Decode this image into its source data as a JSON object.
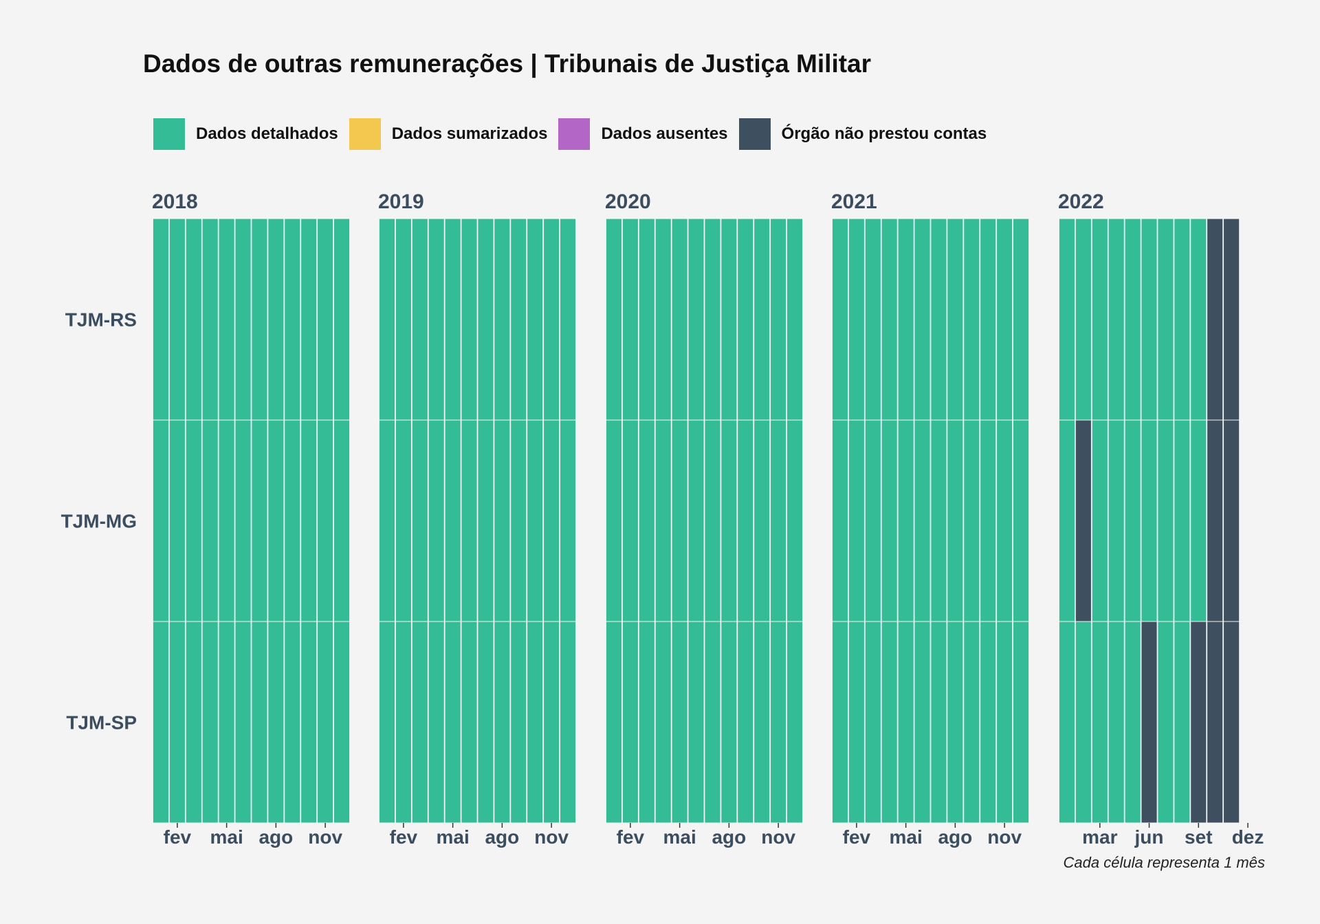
{
  "title": "Dados de outras remunerações | Tribunais de Justiça Militar",
  "colors": {
    "background": "#f4f4f4",
    "axis_text": "#3b4d5e",
    "detalhados": "#33bc96",
    "sumarizados": "#f4c84e",
    "ausentes": "#b466c6",
    "nao_prestou": "#3e5060"
  },
  "legend": [
    {
      "label": "Dados detalhados",
      "color": "#33bc96",
      "key": "D"
    },
    {
      "label": "Dados sumarizados",
      "color": "#f4c84e",
      "key": "S"
    },
    {
      "label": "Dados ausentes",
      "color": "#b466c6",
      "key": "A"
    },
    {
      "label": "Órgão não prestou contas",
      "color": "#3e5060",
      "key": "N"
    }
  ],
  "caption": "Cada célula representa 1 mês",
  "chart_data": {
    "type": "heatmap",
    "rows": [
      "TJM-RS",
      "TJM-MG",
      "TJM-SP"
    ],
    "tick_labels_default": [
      "fev",
      "mai",
      "ago",
      "nov"
    ],
    "tick_months_default": [
      2,
      5,
      8,
      11
    ],
    "tick_labels_2022": [
      "mar",
      "jun",
      "set",
      "dez"
    ],
    "tick_months_2022": [
      3,
      6,
      9,
      12
    ],
    "panels": [
      {
        "year": "2018",
        "months": 12,
        "status": {
          "TJM-RS": [
            "D",
            "D",
            "D",
            "D",
            "D",
            "D",
            "D",
            "D",
            "D",
            "D",
            "D",
            "D"
          ],
          "TJM-MG": [
            "D",
            "D",
            "D",
            "D",
            "D",
            "D",
            "D",
            "D",
            "D",
            "D",
            "D",
            "D"
          ],
          "TJM-SP": [
            "D",
            "D",
            "D",
            "D",
            "D",
            "D",
            "D",
            "D",
            "D",
            "D",
            "D",
            "D"
          ]
        }
      },
      {
        "year": "2019",
        "months": 12,
        "status": {
          "TJM-RS": [
            "D",
            "D",
            "D",
            "D",
            "D",
            "D",
            "D",
            "D",
            "D",
            "D",
            "D",
            "D"
          ],
          "TJM-MG": [
            "D",
            "D",
            "D",
            "D",
            "D",
            "D",
            "D",
            "D",
            "D",
            "D",
            "D",
            "D"
          ],
          "TJM-SP": [
            "D",
            "D",
            "D",
            "D",
            "D",
            "D",
            "D",
            "D",
            "D",
            "D",
            "D",
            "D"
          ]
        }
      },
      {
        "year": "2020",
        "months": 12,
        "status": {
          "TJM-RS": [
            "D",
            "D",
            "D",
            "D",
            "D",
            "D",
            "D",
            "D",
            "D",
            "D",
            "D",
            "D"
          ],
          "TJM-MG": [
            "D",
            "D",
            "D",
            "D",
            "D",
            "D",
            "D",
            "D",
            "D",
            "D",
            "D",
            "D"
          ],
          "TJM-SP": [
            "D",
            "D",
            "D",
            "D",
            "D",
            "D",
            "D",
            "D",
            "D",
            "D",
            "D",
            "D"
          ]
        }
      },
      {
        "year": "2021",
        "months": 12,
        "status": {
          "TJM-RS": [
            "D",
            "D",
            "D",
            "D",
            "D",
            "D",
            "D",
            "D",
            "D",
            "D",
            "D",
            "D"
          ],
          "TJM-MG": [
            "D",
            "D",
            "D",
            "D",
            "D",
            "D",
            "D",
            "D",
            "D",
            "D",
            "D",
            "D"
          ],
          "TJM-SP": [
            "D",
            "D",
            "D",
            "D",
            "D",
            "D",
            "D",
            "D",
            "D",
            "D",
            "D",
            "D"
          ]
        }
      },
      {
        "year": "2022",
        "months": 11,
        "status": {
          "TJM-RS": [
            "D",
            "D",
            "D",
            "D",
            "D",
            "D",
            "D",
            "D",
            "D",
            "N",
            "N"
          ],
          "TJM-MG": [
            "D",
            "N",
            "D",
            "D",
            "D",
            "D",
            "D",
            "D",
            "D",
            "N",
            "N"
          ],
          "TJM-SP": [
            "D",
            "D",
            "D",
            "D",
            "D",
            "N",
            "D",
            "D",
            "N",
            "N",
            "N"
          ]
        }
      }
    ]
  }
}
